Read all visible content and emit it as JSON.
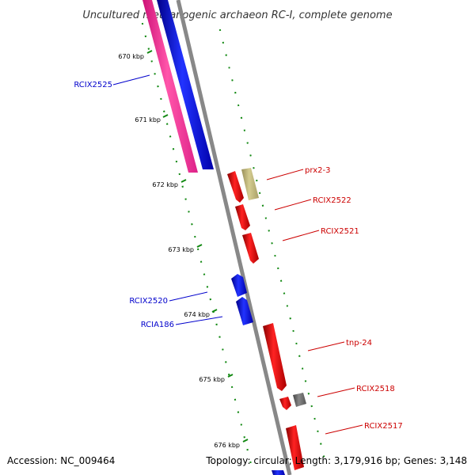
{
  "title": "Uncultured methanogenic archaeon RC-I, complete genome",
  "footer": {
    "accession": "Accession: NC_009464",
    "summary": "Topology: circular; Length: 3,179,916 bp; Genes: 3,148"
  },
  "ticks": [
    "670 kbp",
    "671 kbp",
    "672 kbp",
    "673 kbp",
    "674 kbp",
    "675 kbp",
    "676 kbp"
  ],
  "genes": [
    {
      "label": "RCIX2525",
      "color": "#0000cc"
    },
    {
      "label": "prx2-3",
      "color": "#cc0000"
    },
    {
      "label": "RCIX2522",
      "color": "#cc0000"
    },
    {
      "label": "RCIX2521",
      "color": "#cc0000"
    },
    {
      "label": "RCIX2520",
      "color": "#0000cc"
    },
    {
      "label": "RCIA186",
      "color": "#0000cc"
    },
    {
      "label": "tnp-24",
      "color": "#cc0000"
    },
    {
      "label": "RCIX2518",
      "color": "#cc0000"
    },
    {
      "label": "RCIX2517",
      "color": "#cc0000"
    }
  ],
  "colors": {
    "forward": "#ff0000",
    "reverse": "#0000ff",
    "rrna": "#ff3399",
    "misc": "#c8c080",
    "other": "#777777",
    "backbone": "#888888",
    "tick": "#118811"
  }
}
